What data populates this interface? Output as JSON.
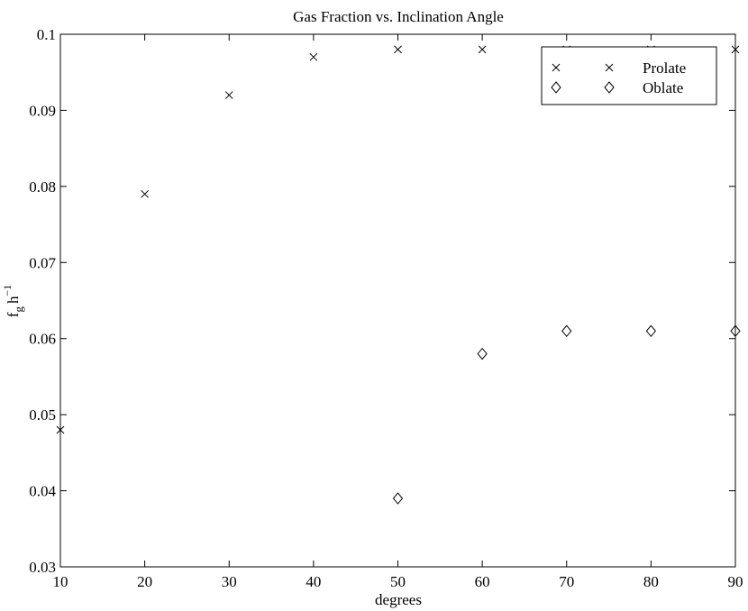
{
  "chart_data": {
    "type": "scatter",
    "title": "Gas Fraction vs. Inclination Angle",
    "xlabel": "degrees",
    "ylabel": {
      "base": "f",
      "sub": "g",
      "rest": "h",
      "sup": "−1"
    },
    "xlim": [
      10,
      90
    ],
    "ylim": [
      0.03,
      0.1
    ],
    "xticks": [
      "10",
      "20",
      "30",
      "40",
      "50",
      "60",
      "70",
      "80",
      "90"
    ],
    "yticks": [
      "0.03",
      "0.04",
      "0.05",
      "0.06",
      "0.07",
      "0.08",
      "0.09",
      "0.1"
    ],
    "grid": false,
    "legend_position": "top-right",
    "series": [
      {
        "name": "Prolate",
        "marker": "x",
        "x": [
          10,
          20,
          30,
          40,
          50,
          60,
          70,
          80,
          90
        ],
        "y": [
          0.048,
          0.079,
          0.092,
          0.097,
          0.098,
          0.098,
          0.098,
          0.098,
          0.098
        ]
      },
      {
        "name": "Oblate",
        "marker": "diamond",
        "x": [
          50,
          60,
          70,
          80,
          90
        ],
        "y": [
          0.039,
          0.058,
          0.061,
          0.061,
          0.061
        ]
      }
    ]
  }
}
